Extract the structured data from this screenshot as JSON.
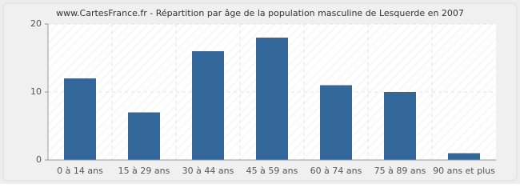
{
  "chart_data": {
    "type": "bar",
    "title": "www.CartesFrance.fr - Répartition par âge de la population masculine de Lesquerde en 2007",
    "categories": [
      "0 à 14 ans",
      "15 à 29 ans",
      "30 à 44 ans",
      "45 à 59 ans",
      "60 à 74 ans",
      "75 à 89 ans",
      "90 ans et plus"
    ],
    "values": [
      12,
      7,
      16,
      18,
      11,
      10,
      1
    ],
    "color": "#336699",
    "ylim": [
      0,
      20
    ],
    "yticks": [
      0,
      10,
      20
    ],
    "grid": true
  }
}
